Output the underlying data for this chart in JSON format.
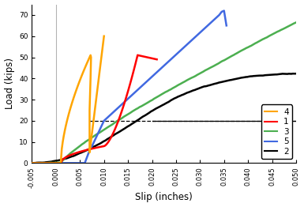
{
  "title": "",
  "xlabel": "Slip (inches)",
  "ylabel": "Load (kips)",
  "xlim": [
    -0.005,
    0.05
  ],
  "ylim": [
    0,
    75
  ],
  "yticks": [
    0,
    10,
    20,
    30,
    40,
    50,
    60,
    70
  ],
  "xticks": [
    -0.005,
    0.0,
    0.005,
    0.01,
    0.015,
    0.02,
    0.025,
    0.03,
    0.035,
    0.04,
    0.045,
    0.05
  ],
  "dashed_line_y": 20,
  "vline_x": 0.0,
  "colors": {
    "1": "#ff0000",
    "2": "#000000",
    "3": "#4caf50",
    "4": "#ffa500",
    "5": "#4169e1"
  },
  "legend_order": [
    "4",
    "1",
    "3",
    "5",
    "2"
  ],
  "background_color": "#ffffff"
}
